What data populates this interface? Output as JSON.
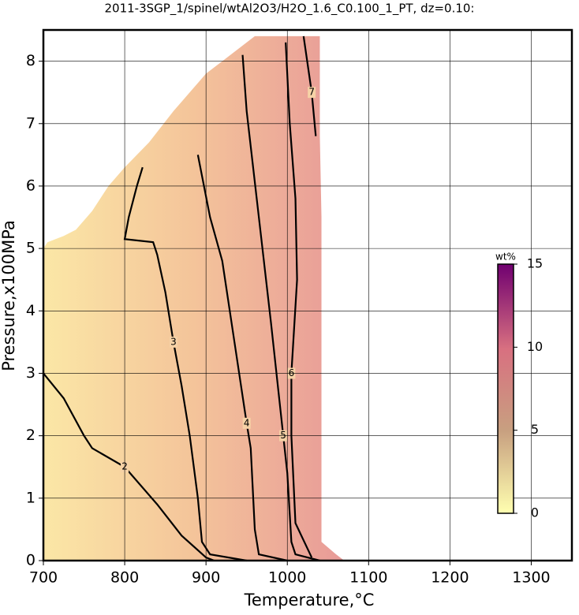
{
  "chart_data": {
    "type": "contour",
    "title": "2011-3SGP_1/spinel/wtAl2O3/H2O_1.6_C0.100_1_PT, dz=0.10:",
    "x_label": "Temperature,°C",
    "y_label": "Pressure,x100MPa",
    "xlim": [
      700,
      1350
    ],
    "ylim": [
      0,
      8.5
    ],
    "xticks": [
      700,
      800,
      900,
      1000,
      1100,
      1200,
      1300
    ],
    "yticks": [
      0,
      1,
      2,
      3,
      4,
      5,
      6,
      7,
      8
    ],
    "grid": true,
    "field_boundary": {
      "x": [
        700,
        700,
        705,
        725,
        740,
        760,
        780,
        800,
        830,
        860,
        880,
        900,
        920,
        940,
        960,
        1040,
        1040,
        1042,
        1042,
        1060,
        1070
      ],
      "y": [
        0,
        5.0,
        5.1,
        5.2,
        5.3,
        5.6,
        6.0,
        6.3,
        6.7,
        7.2,
        7.5,
        7.8,
        8.0,
        8.2,
        8.4,
        8.4,
        6.8,
        5.5,
        0.3,
        0.1,
        0
      ]
    },
    "contours": [
      {
        "level": 2,
        "x": [
          700,
          725,
          750,
          760,
          800,
          840,
          870,
          900,
          910
        ],
        "y": [
          3.0,
          2.6,
          2.0,
          1.8,
          1.5,
          0.9,
          0.4,
          0.05,
          0
        ]
      },
      {
        "level": 3,
        "x": [
          822,
          815,
          805,
          800,
          835,
          840,
          850,
          860,
          870,
          880,
          890,
          895,
          905,
          950
        ],
        "y": [
          6.3,
          6.0,
          5.5,
          5.15,
          5.1,
          4.9,
          4.3,
          3.5,
          2.8,
          2.0,
          1.0,
          0.3,
          0.1,
          0
        ]
      },
      {
        "level": 4,
        "x": [
          890,
          905,
          920,
          935,
          950,
          955,
          960,
          965,
          1000
        ],
        "y": [
          6.5,
          5.5,
          4.8,
          3.5,
          2.2,
          1.8,
          0.5,
          0.1,
          0
        ]
      },
      {
        "level": 5,
        "x": [
          945,
          950,
          965,
          980,
          995,
          1000,
          1005,
          1010,
          1040
        ],
        "y": [
          8.1,
          7.2,
          5.5,
          3.8,
          2.0,
          1.4,
          0.3,
          0.1,
          0
        ]
      },
      {
        "level": 6,
        "x": [
          998,
          1003,
          1010,
          1012,
          1005,
          1005,
          1010,
          1030
        ],
        "y": [
          8.3,
          7.0,
          5.8,
          4.5,
          3.0,
          2.0,
          0.6,
          0.05
        ]
      },
      {
        "level": 7,
        "x": [
          1020,
          1030,
          1035
        ],
        "y": [
          8.4,
          7.5,
          6.8
        ]
      }
    ],
    "colorbar": {
      "label": "wt%",
      "lim": [
        0,
        15
      ],
      "ticks": [
        0,
        5,
        10,
        15
      ]
    }
  }
}
